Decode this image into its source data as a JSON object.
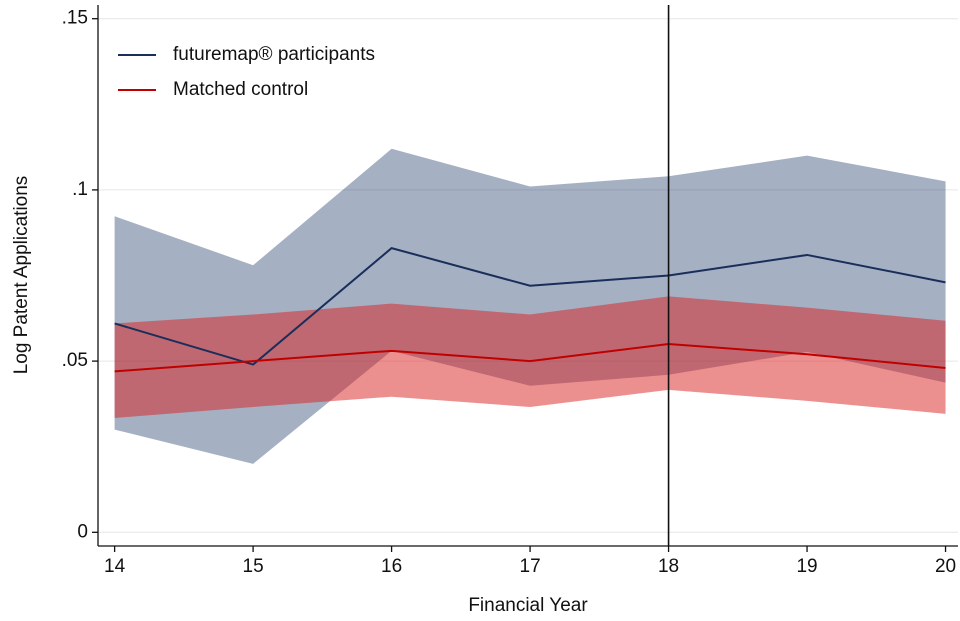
{
  "chart_data": {
    "type": "line",
    "x_label": "Financial Year",
    "y_label": "Log Patent Applications",
    "x": [
      14,
      15,
      16,
      17,
      18,
      19,
      20
    ],
    "series": [
      {
        "name": "futuremap® participants",
        "color": "#1a2e5a",
        "band_color": "#1f3a68",
        "values": [
          0.061,
          0.049,
          0.083,
          0.072,
          0.075,
          0.081,
          0.073
        ],
        "upper": [
          0.0923,
          0.078,
          0.112,
          0.101,
          0.104,
          0.11,
          0.1025
        ],
        "lower": [
          0.03,
          0.02,
          0.053,
          0.0428,
          0.046,
          0.0527,
          0.0437
        ]
      },
      {
        "name": "Matched control",
        "color": "#c00000",
        "band_color": "#d92020",
        "values": [
          0.047,
          0.05,
          0.053,
          0.05,
          0.055,
          0.052,
          0.048
        ],
        "upper": [
          0.061,
          0.0636,
          0.0668,
          0.0636,
          0.0689,
          0.0656,
          0.0618
        ],
        "lower": [
          0.0334,
          0.0366,
          0.0396,
          0.0366,
          0.0416,
          0.0384,
          0.0346
        ]
      }
    ],
    "vline": 18,
    "xlim": [
      13.88,
      20.09
    ],
    "ylim": [
      -0.004,
      0.154
    ],
    "xticks": [
      14,
      15,
      16,
      17,
      18,
      19,
      20
    ],
    "yticks": [
      0,
      {
        "value": 0.05,
        "label": ".05"
      },
      {
        "value": 0.1,
        "label": ".1"
      },
      {
        "value": 0.15,
        "label": ".15"
      }
    ],
    "grid": true,
    "legend": "top-left"
  }
}
